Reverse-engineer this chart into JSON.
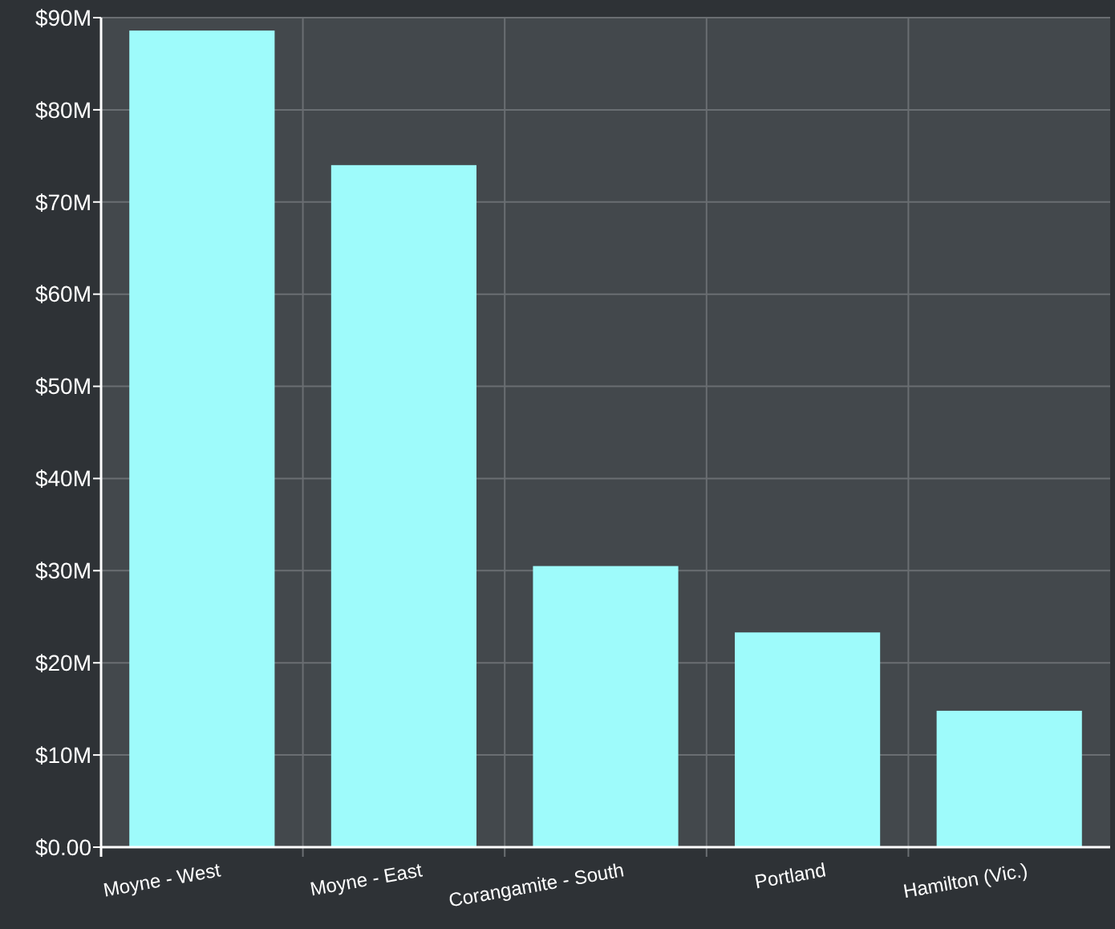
{
  "chart_data": {
    "type": "bar",
    "categories": [
      "Moyne - West",
      "Moyne - East",
      "Corangamite - South",
      "Portland",
      "Hamilton (Vic.)"
    ],
    "values": [
      88.6,
      74,
      30.5,
      23.3,
      14.8
    ],
    "color": "#9efbfb",
    "ylim": [
      0,
      90
    ],
    "yticks": [
      {
        "value": 0,
        "label": "$0.00"
      },
      {
        "value": 10,
        "label": "$10M"
      },
      {
        "value": 20,
        "label": "$20M"
      },
      {
        "value": 30,
        "label": "$30M"
      },
      {
        "value": 40,
        "label": "$40M"
      },
      {
        "value": 50,
        "label": "$50M"
      },
      {
        "value": 60,
        "label": "$60M"
      },
      {
        "value": 70,
        "label": "$70M"
      },
      {
        "value": 80,
        "label": "$80M"
      },
      {
        "value": 90,
        "label": "$90M"
      }
    ],
    "grid": true
  }
}
